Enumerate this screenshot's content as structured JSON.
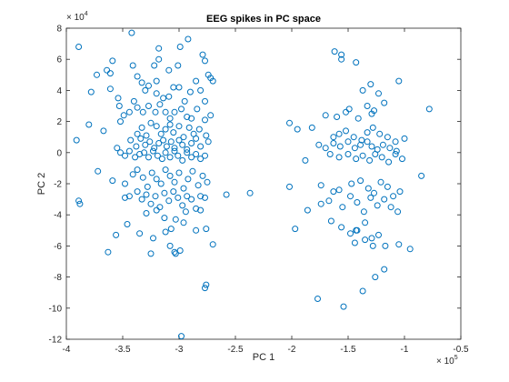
{
  "chart_data": {
    "type": "scatter",
    "title": "EEG spikes in PC space",
    "xlabel": "PC 1",
    "ylabel": "PC 2",
    "xlim": [
      -400000,
      -50000
    ],
    "ylim": [
      -120000,
      80000
    ],
    "x_ticks": [
      -4,
      -3.5,
      -3,
      -2.5,
      -2,
      -1.5,
      -1,
      -0.5
    ],
    "y_ticks": [
      8,
      6,
      4,
      2,
      0,
      -2,
      -4,
      -6,
      -8,
      -10,
      -12
    ],
    "x_exponent": {
      "base": "× 10",
      "power": "5"
    },
    "y_exponent": {
      "base": "× 10",
      "power": "4"
    },
    "grid": false,
    "marker": "circle-open",
    "color": "#0072bd",
    "series": [
      {
        "points": [
          [
            -389000,
            68000
          ],
          [
            -373000,
            50000
          ],
          [
            -361000,
            51000
          ],
          [
            -361000,
            41000
          ],
          [
            -359000,
            59000
          ],
          [
            -342000,
            77000
          ],
          [
            -341000,
            56000
          ],
          [
            -318000,
            67000
          ],
          [
            -337000,
            49000
          ],
          [
            -320000,
            46000
          ],
          [
            -322000,
            56000
          ],
          [
            -309000,
            53000
          ],
          [
            -301000,
            56000
          ],
          [
            -299000,
            68000
          ],
          [
            -279000,
            63000
          ],
          [
            -277000,
            59000
          ],
          [
            -292000,
            73000
          ],
          [
            -318000,
            60000
          ],
          [
            -333000,
            45000
          ],
          [
            -330000,
            40000
          ],
          [
            -327000,
            43000
          ],
          [
            -320000,
            38000
          ],
          [
            -314000,
            35000
          ],
          [
            -309000,
            36000
          ],
          [
            -305000,
            42000
          ],
          [
            -300000,
            42000
          ],
          [
            -295000,
            33000
          ],
          [
            -290000,
            39000
          ],
          [
            -285000,
            46000
          ],
          [
            -281000,
            40000
          ],
          [
            -277000,
            33000
          ],
          [
            -274000,
            50000
          ],
          [
            -272000,
            48000
          ],
          [
            -270000,
            46000
          ],
          [
            -378000,
            39000
          ],
          [
            -364000,
            53000
          ],
          [
            -354000,
            35000
          ],
          [
            -353000,
            30000
          ],
          [
            -349000,
            24000
          ],
          [
            -344000,
            26000
          ],
          [
            -340000,
            33000
          ],
          [
            -337000,
            29000
          ],
          [
            -332000,
            26000
          ],
          [
            -327000,
            30000
          ],
          [
            -321000,
            26000
          ],
          [
            -317000,
            31000
          ],
          [
            -312000,
            26000
          ],
          [
            -308000,
            22000
          ],
          [
            -304000,
            26000
          ],
          [
            -298000,
            28000
          ],
          [
            -293000,
            23000
          ],
          [
            -289000,
            22000
          ],
          [
            -284000,
            28000
          ],
          [
            -277000,
            21000
          ],
          [
            -272000,
            24000
          ],
          [
            -380000,
            18000
          ],
          [
            -367000,
            14000
          ],
          [
            -352000,
            20000
          ],
          [
            -337000,
            12000
          ],
          [
            -333000,
            16000
          ],
          [
            -329000,
            11000
          ],
          [
            -325000,
            19000
          ],
          [
            -320000,
            17000
          ],
          [
            -316000,
            12000
          ],
          [
            -312000,
            15000
          ],
          [
            -308000,
            18000
          ],
          [
            -305000,
            13000
          ],
          [
            -300000,
            17000
          ],
          [
            -296000,
            10000
          ],
          [
            -291000,
            16000
          ],
          [
            -287000,
            12000
          ],
          [
            -282000,
            15000
          ],
          [
            -276000,
            11000
          ],
          [
            -343000,
            8000
          ],
          [
            -338000,
            4000
          ],
          [
            -334000,
            9000
          ],
          [
            -330000,
            5000
          ],
          [
            -326000,
            7000
          ],
          [
            -322000,
            3000
          ],
          [
            -318000,
            6000
          ],
          [
            -314000,
            8000
          ],
          [
            -311000,
            4000
          ],
          [
            -307000,
            7000
          ],
          [
            -304000,
            3000
          ],
          [
            -300000,
            8000
          ],
          [
            -297000,
            5000
          ],
          [
            -293000,
            2000
          ],
          [
            -289000,
            6000
          ],
          [
            -285000,
            9000
          ],
          [
            -281000,
            4000
          ],
          [
            -274000,
            7000
          ],
          [
            -391000,
            8000
          ],
          [
            -355000,
            3000
          ],
          [
            -352000,
            0
          ],
          [
            -348000,
            -2000
          ],
          [
            -344000,
            1000
          ],
          [
            -339000,
            -3000
          ],
          [
            -335000,
            -1000
          ],
          [
            -331000,
            0
          ],
          [
            -327000,
            -3000
          ],
          [
            -323000,
            1000
          ],
          [
            -319000,
            -2000
          ],
          [
            -315000,
            -4000
          ],
          [
            -312000,
            0
          ],
          [
            -308000,
            -3000
          ],
          [
            -304000,
            1000
          ],
          [
            -301000,
            -2000
          ],
          [
            -297000,
            -5000
          ],
          [
            -293000,
            0
          ],
          [
            -289000,
            -3000
          ],
          [
            -285000,
            -1000
          ],
          [
            -281000,
            -4000
          ],
          [
            -277000,
            -2000
          ],
          [
            -372000,
            -12000
          ],
          [
            -359000,
            -18000
          ],
          [
            -348000,
            -20000
          ],
          [
            -341000,
            -14000
          ],
          [
            -337000,
            -11000
          ],
          [
            -332000,
            -16000
          ],
          [
            -328000,
            -22000
          ],
          [
            -324000,
            -13000
          ],
          [
            -320000,
            -17000
          ],
          [
            -316000,
            -20000
          ],
          [
            -312000,
            -11000
          ],
          [
            -308000,
            -15000
          ],
          [
            -304000,
            -19000
          ],
          [
            -300000,
            -13000
          ],
          [
            -296000,
            -23000
          ],
          [
            -292000,
            -17000
          ],
          [
            -288000,
            -12000
          ],
          [
            -283000,
            -21000
          ],
          [
            -279000,
            -15000
          ],
          [
            -275000,
            -19000
          ],
          [
            -348000,
            -29000
          ],
          [
            -344000,
            -28000
          ],
          [
            -337000,
            -25000
          ],
          [
            -333000,
            -30000
          ],
          [
            -329000,
            -27000
          ],
          [
            -325000,
            -33000
          ],
          [
            -321000,
            -28000
          ],
          [
            -317000,
            -35000
          ],
          [
            -313000,
            -26000
          ],
          [
            -309000,
            -31000
          ],
          [
            -305000,
            -25000
          ],
          [
            -301000,
            -29000
          ],
          [
            -297000,
            -34000
          ],
          [
            -293000,
            -28000
          ],
          [
            -289000,
            -30000
          ],
          [
            -285000,
            -36000
          ],
          [
            -281000,
            -28000
          ],
          [
            -277000,
            -29000
          ],
          [
            -389000,
            -31000
          ],
          [
            -388000,
            -33000
          ],
          [
            -329000,
            -39000
          ],
          [
            -320000,
            -37000
          ],
          [
            -313000,
            -42000
          ],
          [
            -303000,
            -43000
          ],
          [
            -294000,
            -38000
          ],
          [
            -281000,
            -37000
          ],
          [
            -346000,
            -46000
          ],
          [
            -335000,
            -52000
          ],
          [
            -323000,
            -55000
          ],
          [
            -312000,
            -51000
          ],
          [
            -307000,
            -49000
          ],
          [
            -296000,
            -45000
          ],
          [
            -285000,
            -50000
          ],
          [
            -276000,
            -49000
          ],
          [
            -356000,
            -53000
          ],
          [
            -325000,
            -65000
          ],
          [
            -308000,
            -60000
          ],
          [
            -299000,
            -63000
          ],
          [
            -303000,
            -65000
          ],
          [
            -304000,
            -64000
          ],
          [
            -270000,
            -59000
          ],
          [
            -363000,
            -64000
          ],
          [
            -276000,
            -85000
          ],
          [
            -277000,
            -87000
          ],
          [
            -298000,
            -118000
          ],
          [
            -258000,
            -27000
          ],
          [
            -237000,
            -26000
          ],
          [
            -202000,
            19000
          ],
          [
            -195000,
            15000
          ],
          [
            -162000,
            65000
          ],
          [
            -156000,
            63000
          ],
          [
            -156000,
            60000
          ],
          [
            -143000,
            58000
          ],
          [
            -137000,
            40000
          ],
          [
            -130000,
            44000
          ],
          [
            -105000,
            46000
          ],
          [
            -78000,
            28000
          ],
          [
            -118000,
            32000
          ],
          [
            -123000,
            38000
          ],
          [
            -127000,
            27000
          ],
          [
            -129000,
            25000
          ],
          [
            -133000,
            30000
          ],
          [
            -141000,
            22000
          ],
          [
            -149000,
            28000
          ],
          [
            -152000,
            26000
          ],
          [
            -160000,
            23000
          ],
          [
            -170000,
            24000
          ],
          [
            -182000,
            16000
          ],
          [
            -152000,
            14000
          ],
          [
            -158000,
            12000
          ],
          [
            -163000,
            10000
          ],
          [
            -145000,
            10000
          ],
          [
            -138000,
            8000
          ],
          [
            -133000,
            13000
          ],
          [
            -128000,
            16000
          ],
          [
            -122000,
            12000
          ],
          [
            -115000,
            10000
          ],
          [
            -108000,
            7000
          ],
          [
            -100000,
            9000
          ],
          [
            -176000,
            5000
          ],
          [
            -170000,
            3000
          ],
          [
            -163000,
            6000
          ],
          [
            -157000,
            4000
          ],
          [
            -150000,
            7000
          ],
          [
            -144000,
            3000
          ],
          [
            -139000,
            5000
          ],
          [
            -133000,
            7000
          ],
          [
            -129000,
            4000
          ],
          [
            -124000,
            2000
          ],
          [
            -119000,
            5000
          ],
          [
            -113000,
            3000
          ],
          [
            -107000,
            1000
          ],
          [
            -188000,
            -5000
          ],
          [
            -166000,
            -1000
          ],
          [
            -158000,
            -3000
          ],
          [
            -150000,
            -1000
          ],
          [
            -143000,
            -4000
          ],
          [
            -137000,
            -2000
          ],
          [
            -131000,
            -5000
          ],
          [
            -126000,
            -1000
          ],
          [
            -120000,
            -3000
          ],
          [
            -114000,
            -6000
          ],
          [
            -108000,
            -1000
          ],
          [
            -102000,
            -4000
          ],
          [
            -85000,
            -15000
          ],
          [
            -202000,
            -22000
          ],
          [
            -174000,
            -21000
          ],
          [
            -163000,
            -25000
          ],
          [
            -158000,
            -24000
          ],
          [
            -147000,
            -20000
          ],
          [
            -139000,
            -18000
          ],
          [
            -132000,
            -23000
          ],
          [
            -127000,
            -26000
          ],
          [
            -121000,
            -19000
          ],
          [
            -115000,
            -22000
          ],
          [
            -110000,
            -28000
          ],
          [
            -104000,
            -25000
          ],
          [
            -186000,
            -37000
          ],
          [
            -174000,
            -33000
          ],
          [
            -167000,
            -31000
          ],
          [
            -155000,
            -35000
          ],
          [
            -148000,
            -28000
          ],
          [
            -142000,
            -32000
          ],
          [
            -136000,
            -38000
          ],
          [
            -130000,
            -29000
          ],
          [
            -124000,
            -34000
          ],
          [
            -118000,
            -30000
          ],
          [
            -112000,
            -35000
          ],
          [
            -106000,
            -38000
          ],
          [
            -197000,
            -49000
          ],
          [
            -165000,
            -44000
          ],
          [
            -156000,
            -48000
          ],
          [
            -148000,
            -52000
          ],
          [
            -142000,
            -50000
          ],
          [
            -135000,
            -45000
          ],
          [
            -129000,
            -55000
          ],
          [
            -123000,
            -53000
          ],
          [
            -117000,
            -60000
          ],
          [
            -105000,
            -59000
          ],
          [
            -95000,
            -62000
          ],
          [
            -143000,
            -50000
          ],
          [
            -135000,
            -56000
          ],
          [
            -144000,
            -58000
          ],
          [
            -128000,
            -60000
          ],
          [
            -126000,
            -80000
          ],
          [
            -118000,
            -75000
          ],
          [
            -177000,
            -94000
          ],
          [
            -154000,
            -99000
          ],
          [
            -137000,
            -89000
          ]
        ]
      }
    ]
  }
}
